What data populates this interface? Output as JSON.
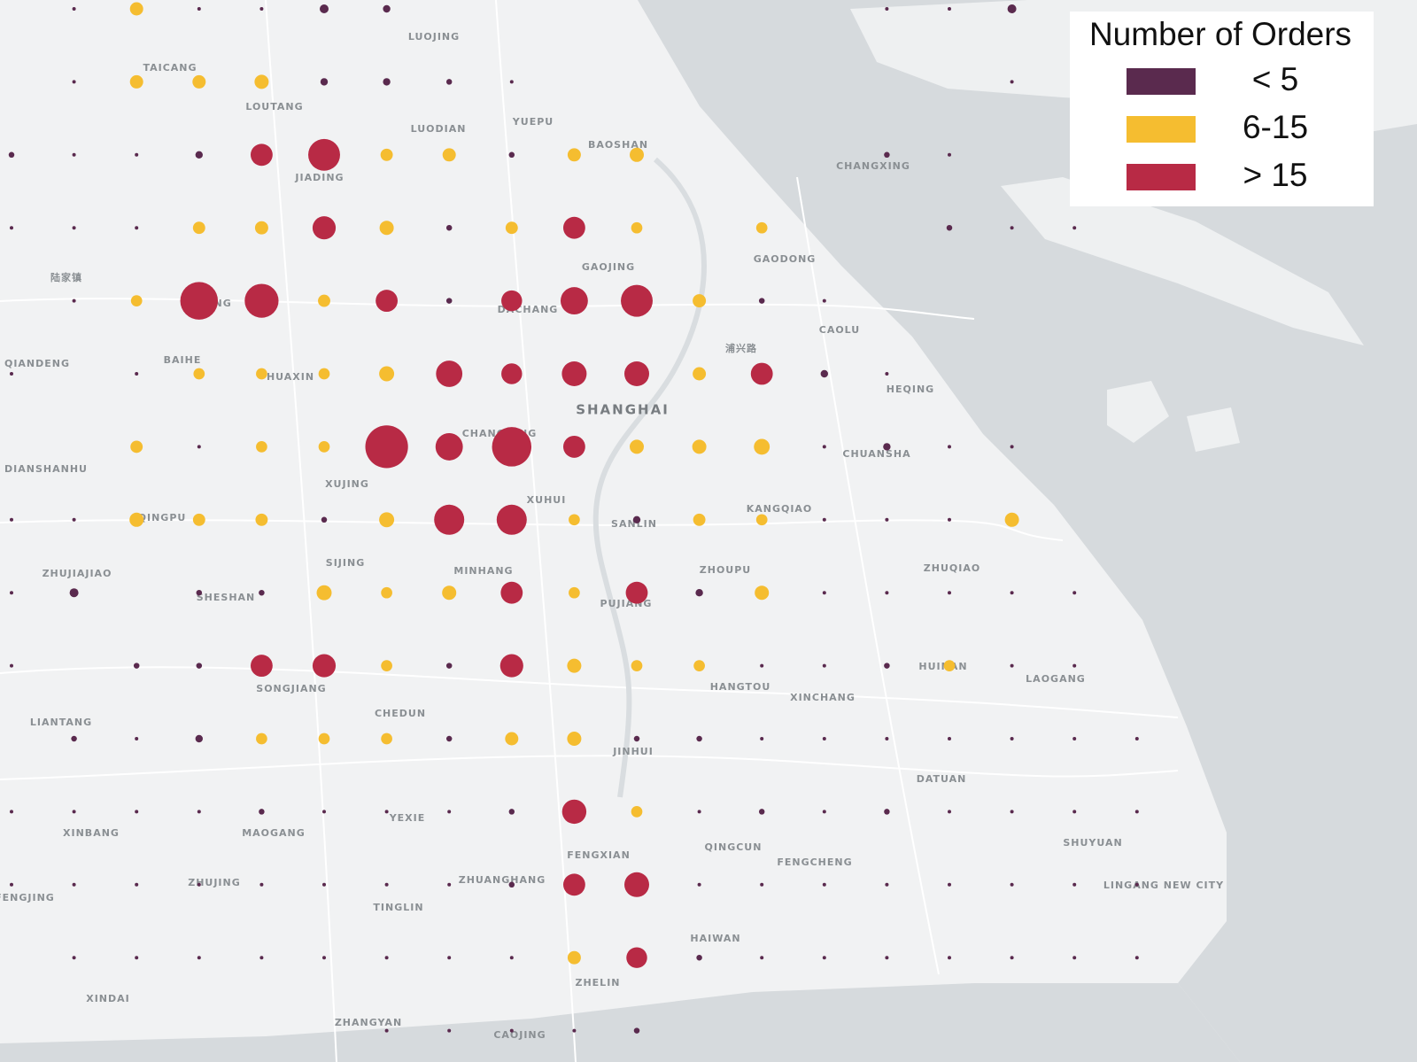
{
  "map": {
    "legend": {
      "title": "Number of Orders",
      "items": [
        {
          "label": "< 5",
          "color": "#5a2a4e"
        },
        {
          "label": "6-15",
          "color": "#f5bd30"
        },
        {
          "label": "> 15",
          "color": "#b82a45"
        }
      ]
    },
    "places": [
      "LUOJING",
      "TAICANG",
      "LOUTANG",
      "LUODIAN",
      "YUEPU",
      "BAOSHAN",
      "JIADING",
      "CHANGXING",
      "GAOJING",
      "GAODONG",
      "陆家镇",
      "ANTING",
      "DACHANG",
      "CAOLU",
      "浦兴路",
      "QIANDENG",
      "BAIHE",
      "HUAXIN",
      "HEQING",
      "SHANGHAI",
      "CHANGNING",
      "CHUANSHA",
      "DIANSHANHU",
      "XUJING",
      "XUHUI",
      "KANGQIAO",
      "QINGPU",
      "SANLIN",
      "SIJING",
      "ZHUJIAJIAO",
      "MINHANG",
      "ZHOUPU",
      "ZHUQIAO",
      "SHESHAN",
      "PUJIANG",
      "SONGJIANG",
      "HUINAN",
      "LAOGANG",
      "HANGTOU",
      "XINCHANG",
      "CHEDUN",
      "LIANTANG",
      "JINHUI",
      "DATUAN",
      "YEXIE",
      "XINBANG",
      "MAOGANG",
      "SHUYUAN",
      "QINGCUN",
      "FENGXIAN",
      "FENGCHENG",
      "ZHUJING",
      "ZHUANGHANG",
      "LINGANG NEW CITY",
      "FENGJING",
      "TINGLIN",
      "HAIWAN",
      "ZHELIN",
      "XINDAI",
      "ZHANGYAN",
      "CAOJING"
    ],
    "grid": [
      [
        null,
        [
          0,
          1
        ],
        [
          1,
          8
        ],
        [
          0,
          1
        ],
        [
          0,
          1
        ],
        [
          0,
          4
        ],
        [
          0,
          3
        ],
        null,
        null,
        null,
        null,
        null,
        null,
        null,
        [
          0,
          1
        ],
        [
          0,
          1
        ],
        [
          0,
          4
        ],
        null,
        null
      ],
      [
        null,
        [
          0,
          1
        ],
        [
          1,
          8
        ],
        [
          1,
          8
        ],
        [
          1,
          9
        ],
        [
          0,
          3
        ],
        [
          0,
          3
        ],
        [
          0,
          2
        ],
        [
          0,
          1
        ],
        null,
        null,
        null,
        null,
        null,
        null,
        null,
        [
          0,
          1
        ],
        null,
        null
      ],
      [
        [
          0,
          2
        ],
        [
          0,
          1
        ],
        [
          0,
          1
        ],
        [
          0,
          3
        ],
        [
          2,
          20
        ],
        [
          2,
          40
        ],
        [
          1,
          7
        ],
        [
          1,
          8
        ],
        [
          0,
          2
        ],
        [
          1,
          8
        ],
        [
          1,
          9
        ],
        null,
        null,
        null,
        [
          0,
          2
        ],
        [
          0,
          1
        ],
        null,
        null,
        null
      ],
      [
        [
          0,
          1
        ],
        [
          0,
          1
        ],
        [
          0,
          1
        ],
        [
          1,
          7
        ],
        [
          1,
          8
        ],
        [
          2,
          22
        ],
        [
          1,
          9
        ],
        [
          0,
          2
        ],
        [
          1,
          7
        ],
        [
          2,
          20
        ],
        [
          1,
          6
        ],
        null,
        [
          1,
          6
        ],
        null,
        null,
        [
          0,
          2
        ],
        [
          0,
          1
        ],
        [
          0,
          1
        ],
        null
      ],
      [
        null,
        [
          0,
          1
        ],
        [
          1,
          6
        ],
        [
          2,
          55
        ],
        [
          2,
          45
        ],
        [
          1,
          7
        ],
        [
          2,
          20
        ],
        [
          0,
          2
        ],
        [
          2,
          18
        ],
        [
          2,
          30
        ],
        [
          2,
          40
        ],
        [
          1,
          8
        ],
        [
          0,
          2
        ],
        [
          0,
          1
        ],
        null,
        null,
        null,
        null,
        null
      ],
      [
        [
          0,
          1
        ],
        null,
        [
          0,
          1
        ],
        [
          1,
          6
        ],
        [
          1,
          6
        ],
        [
          1,
          6
        ],
        [
          1,
          10
        ],
        [
          2,
          28
        ],
        [
          2,
          18
        ],
        [
          2,
          25
        ],
        [
          2,
          25
        ],
        [
          1,
          8
        ],
        [
          2,
          20
        ],
        [
          0,
          3
        ],
        [
          0,
          1
        ],
        null,
        null,
        null,
        null
      ],
      [
        null,
        null,
        [
          1,
          7
        ],
        [
          0,
          1
        ],
        [
          1,
          6
        ],
        [
          1,
          6
        ],
        [
          2,
          70
        ],
        [
          2,
          30
        ],
        [
          2,
          60
        ],
        [
          2,
          20
        ],
        [
          1,
          9
        ],
        [
          1,
          9
        ],
        [
          1,
          11
        ],
        [
          0,
          1
        ],
        [
          0,
          3
        ],
        [
          0,
          1
        ],
        [
          0,
          1
        ],
        null,
        null
      ],
      [
        [
          0,
          1
        ],
        [
          0,
          1
        ],
        [
          1,
          9
        ],
        [
          1,
          7
        ],
        [
          1,
          7
        ],
        [
          0,
          2
        ],
        [
          1,
          10
        ],
        [
          2,
          36
        ],
        [
          2,
          36
        ],
        [
          1,
          6
        ],
        [
          0,
          3
        ],
        [
          1,
          7
        ],
        [
          1,
          6
        ],
        [
          0,
          1
        ],
        [
          0,
          1
        ],
        [
          0,
          1
        ],
        [
          1,
          9
        ],
        null,
        null
      ],
      [
        [
          0,
          1
        ],
        [
          0,
          4
        ],
        null,
        [
          0,
          2
        ],
        [
          0,
          2
        ],
        [
          1,
          10
        ],
        [
          1,
          6
        ],
        [
          1,
          9
        ],
        [
          2,
          20
        ],
        [
          1,
          6
        ],
        [
          2,
          20
        ],
        [
          0,
          3
        ],
        [
          1,
          9
        ],
        [
          0,
          1
        ],
        [
          0,
          1
        ],
        [
          0,
          1
        ],
        [
          0,
          1
        ],
        [
          0,
          1
        ],
        null
      ],
      [
        [
          0,
          1
        ],
        null,
        [
          0,
          2
        ],
        [
          0,
          2
        ],
        [
          2,
          20
        ],
        [
          2,
          22
        ],
        [
          1,
          6
        ],
        [
          0,
          2
        ],
        [
          2,
          22
        ],
        [
          1,
          9
        ],
        [
          1,
          6
        ],
        [
          1,
          6
        ],
        [
          0,
          1
        ],
        [
          0,
          1
        ],
        [
          0,
          2
        ],
        [
          1,
          6
        ],
        [
          0,
          1
        ],
        [
          0,
          1
        ],
        null
      ],
      [
        null,
        [
          0,
          2
        ],
        [
          0,
          1
        ],
        [
          0,
          3
        ],
        [
          1,
          6
        ],
        [
          1,
          6
        ],
        [
          1,
          6
        ],
        [
          0,
          2
        ],
        [
          1,
          8
        ],
        [
          1,
          9
        ],
        [
          0,
          2
        ],
        [
          0,
          2
        ],
        [
          0,
          1
        ],
        [
          0,
          1
        ],
        [
          0,
          1
        ],
        [
          0,
          1
        ],
        [
          0,
          1
        ],
        [
          0,
          1
        ],
        [
          0,
          1
        ]
      ],
      [
        [
          0,
          1
        ],
        [
          0,
          1
        ],
        [
          0,
          1
        ],
        [
          0,
          1
        ],
        [
          0,
          2
        ],
        [
          0,
          1
        ],
        [
          0,
          1
        ],
        [
          0,
          1
        ],
        [
          0,
          2
        ],
        [
          2,
          24
        ],
        [
          1,
          6
        ],
        [
          0,
          1
        ],
        [
          0,
          2
        ],
        [
          0,
          1
        ],
        [
          0,
          2
        ],
        [
          0,
          1
        ],
        [
          0,
          1
        ],
        [
          0,
          1
        ],
        [
          0,
          1
        ]
      ],
      [
        [
          0,
          1
        ],
        [
          0,
          1
        ],
        [
          0,
          1
        ],
        [
          0,
          1
        ],
        [
          0,
          1
        ],
        [
          0,
          1
        ],
        [
          0,
          1
        ],
        [
          0,
          1
        ],
        [
          0,
          2
        ],
        [
          2,
          20
        ],
        [
          2,
          25
        ],
        [
          0,
          1
        ],
        [
          0,
          1
        ],
        [
          0,
          1
        ],
        [
          0,
          1
        ],
        [
          0,
          1
        ],
        [
          0,
          1
        ],
        [
          0,
          1
        ],
        [
          0,
          1
        ]
      ],
      [
        null,
        [
          0,
          1
        ],
        [
          0,
          1
        ],
        [
          0,
          1
        ],
        [
          0,
          1
        ],
        [
          0,
          1
        ],
        [
          0,
          1
        ],
        [
          0,
          1
        ],
        [
          0,
          1
        ],
        [
          1,
          8
        ],
        [
          2,
          18
        ],
        [
          0,
          2
        ],
        [
          0,
          1
        ],
        [
          0,
          1
        ],
        [
          0,
          1
        ],
        [
          0,
          1
        ],
        [
          0,
          1
        ],
        [
          0,
          1
        ],
        [
          0,
          1
        ]
      ],
      [
        null,
        null,
        null,
        null,
        null,
        null,
        [
          0,
          1
        ],
        [
          0,
          1
        ],
        [
          0,
          1
        ],
        [
          0,
          1
        ],
        [
          0,
          2
        ],
        null,
        null,
        null,
        null,
        null,
        null,
        null,
        null
      ]
    ]
  }
}
